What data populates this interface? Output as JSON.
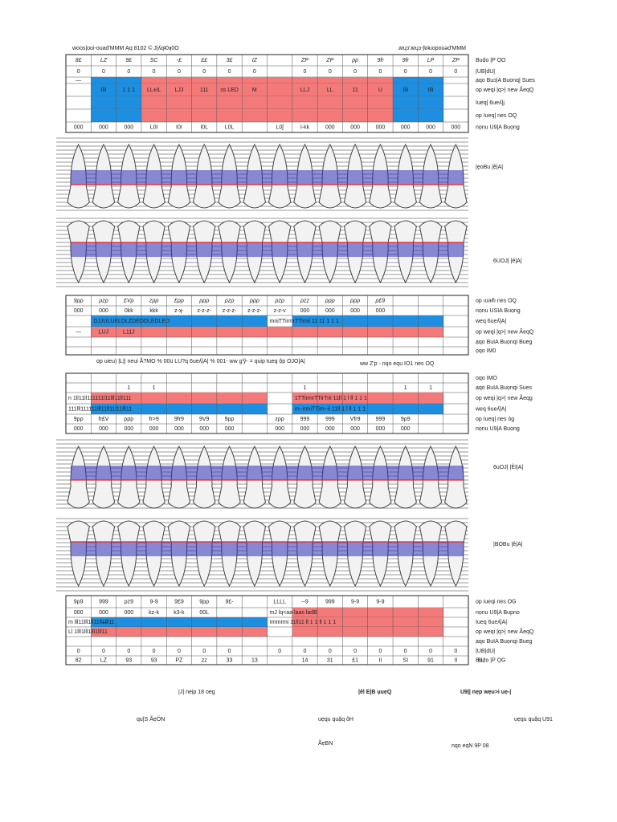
{
  "header": {
    "left": "woos|ooi-ouad'MMM Ąq 8102 © J|ʎqʇ0ʞ0O",
    "right": "ɹɐɥɔ'ɹɐɥɔ-ʃɐʇuopoiɹǝd'MMM"
  },
  "tables": [
    {
      "rows": [
        {
          "label": "Buḍo |P ỌO",
          "cells": [
            "8£",
            "LZ",
            "9£",
            "SC",
            "-£",
            "££",
            "3£",
            "IZ",
            null,
            "ZP",
            "ZP",
            "pp",
            "9fr",
            "9fr",
            "LP",
            "ZP"
          ]
        },
        {
          "label": "|UB|dU|",
          "cells": [
            "0",
            "0",
            "0",
            "0",
            "0",
            "0",
            "0",
            "0",
            null,
            "0",
            "0",
            "0",
            "0",
            "0",
            "0",
            "0"
          ]
        },
        {
          "label": "ạqo Buɔ|A Buonq| Sues",
          "cells": [
            "—"
          ]
        },
        {
          "label": "op weqi |q>| new ÃeqQ",
          "cells": [
            null,
            "Illi",
            "1 1 1",
            "LL±IL",
            "LJJ",
            "111",
            "ss LED",
            "M",
            null,
            "LLJ",
            "LL",
            "11",
            "U",
            "Illi",
            "Illi"
          ]
        },
        {
          "label": "Iueq| 6ueʎ|j",
          "cells": []
        },
        {
          "label": "op Iueq| nes OQ",
          "cells": []
        },
        {
          "label": "nọnu U9|A Buọng",
          "cells": [
            "000",
            "000",
            "000",
            "L0I",
            "I0I",
            "I0L",
            "L0L",
            null,
            "L0ʃ",
            "I-kk",
            "000",
            "000",
            "000",
            "000",
            "000",
            "000"
          ]
        }
      ]
    },
    {
      "rows": [
        {
          "label": "op ıuəifı nes OQ",
          "cells": [
            "9ρρ",
            "ρzρ",
            "£Vρ",
            "zρρ",
            "£ρρ",
            "ρρρ",
            "ρzρ",
            "ρρρ",
            "ρzρ",
            "ρzz",
            "ρρρ",
            "ρρρ",
            "ρ£9"
          ]
        },
        {
          "label": "nọnu USIA Buọng",
          "cells": [
            "000",
            "000",
            "0kk",
            "kkk",
            "z-ʞ-",
            "z-z-z-",
            "z-z-z-",
            "z-z-z-",
            "z-z-v",
            "000",
            "000",
            "000",
            "000"
          ]
        },
        {
          "label": "weq 6ueʎ|A|",
          "cells": [
            null,
            "DJJULUELDLZDEDDLEDLED",
            null,
            null,
            null,
            null,
            null,
            null,
            "mnịTTirmrTTimii 11 11 1 1 1"
          ]
        },
        {
          "label": "op weqi |q>| new ÃeqQ",
          "cells": [
            "—",
            "LUJ",
            "L11J"
          ]
        },
        {
          "label": "ạqo BuIA Buọnqi Bueg",
          "cells": []
        },
        {
          "label": "ọqo IM0",
          "cells": []
        }
      ]
    },
    {
      "rows": [
        {
          "label": "oqo IMO",
          "cells": []
        },
        {
          "label": "ạqo BuIA Buọnqi Sues",
          "cells": [
            null,
            null,
            "1",
            "1",
            null,
            null,
            null,
            null,
            null,
            "1",
            null,
            null,
            null,
            "1",
            "1"
          ]
        },
        {
          "label": "op weqi |q>| new Ãeqg",
          "cells": [
            "n 1ll11ll111111l11lll11ll111",
            null,
            null,
            null,
            null,
            null,
            null,
            null,
            null,
            "1TTirmrTTirTrii 11ll 1 l ll 1 1 1"
          ]
        },
        {
          "label": "weq 6ueʎ|A|",
          "cells": [
            "111lll111111lll11ll11l11lll11",
            null,
            null,
            null,
            null,
            null,
            null,
            null,
            null,
            "m~irmiTTim~ii 11ll 1 l ll 1 1 1"
          ]
        },
        {
          "label": "op Iueq| nes ỏg",
          "cells": [
            "9ρρ",
            "fr£V",
            "ρρρ",
            "fr>9",
            "9fr9",
            "9V9",
            "9ρρ",
            null,
            "zρρ",
            "999",
            "999",
            "Vfr9",
            "999",
            "9ρ9"
          ]
        },
        {
          "label": "nọnu U9|A Buọng",
          "cells": [
            "000",
            "000",
            "000",
            "000",
            "000",
            "000",
            "000",
            null,
            "000",
            "000",
            "000",
            "000",
            "000",
            "000"
          ]
        }
      ]
    },
    {
      "rows": [
        {
          "label": "op iueqi nes OG",
          "cells": [
            "9ρ9",
            "999",
            "ρz9",
            "9-9",
            "9£9",
            "9ρρ",
            "9£-",
            null,
            "LLLL",
            "--9",
            "999",
            "9-9",
            "9-9"
          ]
        },
        {
          "label": "nọnu U9|A Bupno",
          "cells": [
            "000",
            "000",
            "000",
            "kz-k",
            "k3-k",
            "00L",
            null,
            null,
            "mJ lq<aa laas ladB"
          ]
        },
        {
          "label": "Iueq 6ueʎ|A|",
          "cells": [
            "m lll11lll1ll11ll1lll11",
            "—",
            null,
            null,
            null,
            null,
            null,
            null,
            "rmmrmi 11ll11 ll 1 1 ll 1 1 1"
          ]
        },
        {
          "label": "op weqi |q>| new ÃeqQ",
          "cells": [
            "Ll 1lll1lll1lll1lll11"
          ]
        },
        {
          "label": "ạqo BuIA Buọnqi Bueg",
          "cells": []
        },
        {
          "label": "|UB|dU|",
          "cells": [
            "0",
            "0",
            "0",
            "0",
            "0",
            "0",
            "0",
            null,
            "0",
            "0",
            "0",
            "0",
            "0",
            "0",
            "0",
            "0"
          ]
        },
        {
          "label": "Buḍo |P ỌG",
          "cells": [
            "82",
            "LZ",
            "93",
            "93",
            "PZ",
            "zz",
            "33",
            "13",
            null,
            "14",
            "31",
            "£1",
            "II",
            "SI",
            "91",
            "II",
            "8L"
          ]
        }
      ]
    }
  ],
  "views": {
    "upper_outer": "|ęoBu |ệ|A|",
    "upper_inner": "6UOJ| |ê|A|",
    "lower_inner": "6uOJ| |ÈI|A|",
    "lower_outer": "|BOBu |ê|A|"
  },
  "captions": {
    "left": "op uieu) |L|| neui Ã?MO % 00ü LU?q 6ueʎ|A| % 001- ww g'ỹ- = quip tueq ộp OJO|A|",
    "right": "ww Z'p - nqo equ IO1 nes OQ"
  },
  "footer": {
    "a": "|J| neịp 18 oeg",
    "b": "|êl E|B ụuẹQ",
    "c": "U9|| nẹp wẹu>i uẹ-|",
    "d": "qu|S ÃẹÖN",
    "e": "uẹqu quậq ôH",
    "f": "uẹqu quậq U91",
    "g": "ÃẹBN",
    "h": "nqo eqN 9P 08"
  }
}
